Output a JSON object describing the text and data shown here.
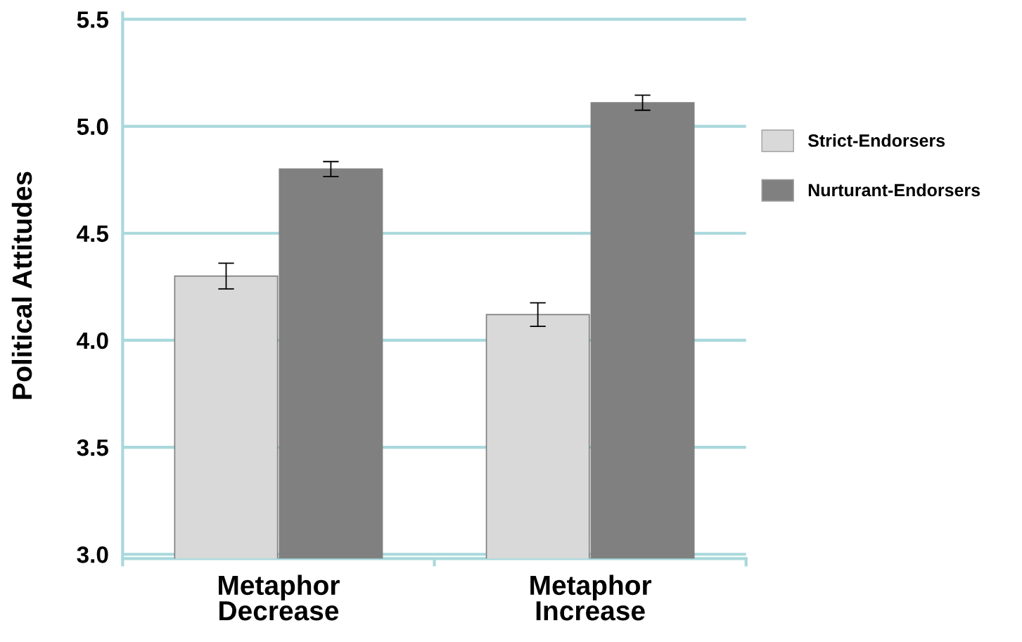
{
  "chart_data": {
    "type": "bar",
    "ylabel": "Political Attitudes",
    "categories": [
      "Metaphor\nDecrease",
      "Metaphor\nIncrease"
    ],
    "series": [
      {
        "name": "Strict-Endorsers",
        "color": "#d9d9d9",
        "values": [
          4.3,
          4.12
        ],
        "errors": [
          0.06,
          0.055
        ]
      },
      {
        "name": "Nurturant-Endorsers",
        "color": "#808080",
        "values": [
          4.8,
          5.11
        ],
        "errors": [
          0.035,
          0.035
        ]
      }
    ],
    "ylim": [
      2.98,
      5.53
    ],
    "yticks": [
      {
        "value": 3.0,
        "label": "3.0"
      },
      {
        "value": 3.5,
        "label": "3.5"
      },
      {
        "value": 4.0,
        "label": "4.0"
      },
      {
        "value": 4.5,
        "label": "4.5"
      },
      {
        "value": 5.0,
        "label": "5.0"
      },
      {
        "value": 5.5,
        "label": "5.5"
      }
    ],
    "grid": "y",
    "legend": "right"
  }
}
